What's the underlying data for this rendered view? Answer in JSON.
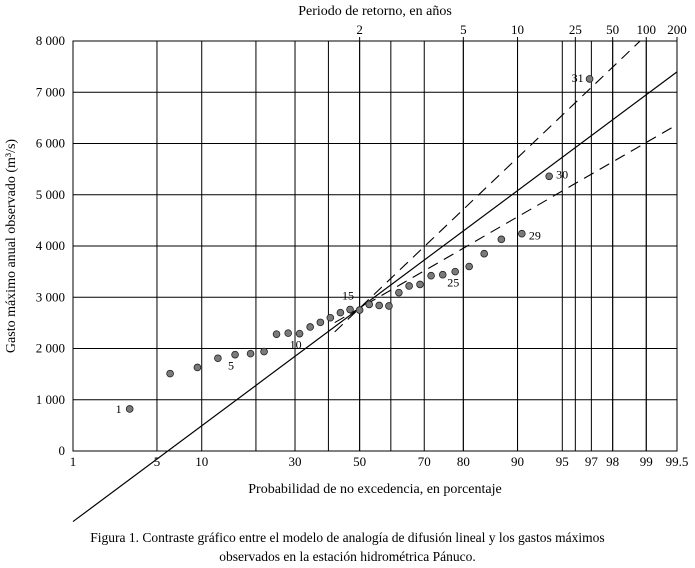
{
  "chart_data": {
    "type": "scatter",
    "title": "",
    "top_axis_label": "Periodo de retorno, en años",
    "xlabel": "Probabilidad de no excedencia, en porcentaje",
    "ylabel": "Gasto máximo anual observado (m³/s)",
    "x_scale": "normal probability",
    "xlim": [
      1,
      99.5
    ],
    "ylim": [
      0,
      8000
    ],
    "grid": true,
    "bottom_ticks": [
      {
        "p": 1,
        "label": "1"
      },
      {
        "p": 5,
        "label": "5"
      },
      {
        "p": 10,
        "label": "10"
      },
      {
        "p": 20,
        "label": ""
      },
      {
        "p": 30,
        "label": "30"
      },
      {
        "p": 40,
        "label": ""
      },
      {
        "p": 50,
        "label": "50"
      },
      {
        "p": 60,
        "label": ""
      },
      {
        "p": 70,
        "label": "70"
      },
      {
        "p": 80,
        "label": "80"
      },
      {
        "p": 90,
        "label": "90"
      },
      {
        "p": 95,
        "label": "95"
      },
      {
        "p": 97,
        "label": "97"
      },
      {
        "p": 98,
        "label": "98"
      },
      {
        "p": 99,
        "label": "99"
      },
      {
        "p": 99.5,
        "label": "99.5"
      }
    ],
    "top_ticks": [
      {
        "p": 50,
        "label": "2"
      },
      {
        "p": 80,
        "label": "5"
      },
      {
        "p": 90,
        "label": "10"
      },
      {
        "p": 96,
        "label": "25"
      },
      {
        "p": 98,
        "label": "50"
      },
      {
        "p": 99,
        "label": "100"
      },
      {
        "p": 99.5,
        "label": "200"
      }
    ],
    "y_ticks": [
      {
        "v": 0,
        "label": "0"
      },
      {
        "v": 1000,
        "label": "1 000"
      },
      {
        "v": 2000,
        "label": "2 000"
      },
      {
        "v": 3000,
        "label": "3 000"
      },
      {
        "v": 4000,
        "label": "4 000"
      },
      {
        "v": 5000,
        "label": "5 000"
      },
      {
        "v": 6000,
        "label": "6 000"
      },
      {
        "v": 7000,
        "label": "7 000"
      },
      {
        "v": 8000,
        "label": "8 000"
      }
    ],
    "points": [
      {
        "p": 3.1,
        "q": 820
      },
      {
        "p": 6.2,
        "q": 1510
      },
      {
        "p": 9.4,
        "q": 1630
      },
      {
        "p": 12.5,
        "q": 1810
      },
      {
        "p": 15.6,
        "q": 1880
      },
      {
        "p": 18.8,
        "q": 1900
      },
      {
        "p": 21.9,
        "q": 1940
      },
      {
        "p": 25.0,
        "q": 2280
      },
      {
        "p": 28.1,
        "q": 2300
      },
      {
        "p": 31.3,
        "q": 2290
      },
      {
        "p": 34.4,
        "q": 2420
      },
      {
        "p": 37.5,
        "q": 2510
      },
      {
        "p": 40.6,
        "q": 2600
      },
      {
        "p": 43.8,
        "q": 2700
      },
      {
        "p": 46.9,
        "q": 2760
      },
      {
        "p": 50.0,
        "q": 2750
      },
      {
        "p": 53.1,
        "q": 2860
      },
      {
        "p": 56.3,
        "q": 2840
      },
      {
        "p": 59.4,
        "q": 2830
      },
      {
        "p": 62.5,
        "q": 3090
      },
      {
        "p": 65.6,
        "q": 3220
      },
      {
        "p": 68.8,
        "q": 3250
      },
      {
        "p": 71.9,
        "q": 3420
      },
      {
        "p": 75.0,
        "q": 3440
      },
      {
        "p": 78.1,
        "q": 3500
      },
      {
        "p": 81.3,
        "q": 3600
      },
      {
        "p": 84.4,
        "q": 3850
      },
      {
        "p": 87.5,
        "q": 4130
      },
      {
        "p": 90.6,
        "q": 4240
      },
      {
        "p": 93.8,
        "q": 5360
      },
      {
        "p": 96.9,
        "q": 7260
      }
    ],
    "point_labels": [
      {
        "index": 0,
        "label": "1"
      },
      {
        "index": 4,
        "label": "5"
      },
      {
        "index": 9,
        "label": "10"
      },
      {
        "index": 14,
        "label": "15"
      },
      {
        "index": 24,
        "label": "25"
      },
      {
        "index": 28,
        "label": "29"
      },
      {
        "index": 29,
        "label": "30"
      },
      {
        "index": 30,
        "label": "31"
      }
    ],
    "fit_line": {
      "mean": 2787,
      "slope": 1790
    },
    "confidence_bands": {
      "upper": {
        "slope": 2290
      },
      "lower": {
        "slope": 1390
      },
      "start_p": 50
    }
  },
  "caption": {
    "line1": "Figura 1. Contraste gráfico entre el modelo de analogía de difusión lineal y los gastos máximos",
    "line2": "observados en la estación hidrométrica Pánuco."
  }
}
